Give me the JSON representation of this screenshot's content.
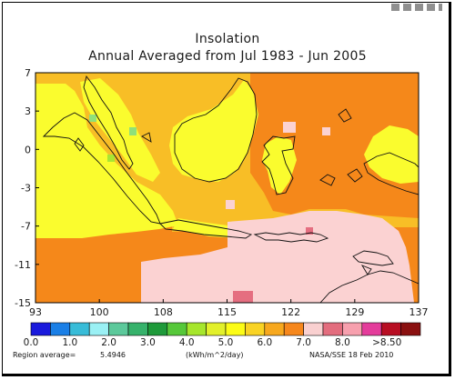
{
  "map": {
    "title": "Insolation",
    "subtitle": "Annual Averaged from Jul 1983 - Jun 2005",
    "x_ticks": [
      "93",
      "100",
      "108",
      "115",
      "122",
      "129",
      "137"
    ],
    "y_ticks": [
      "7",
      "3",
      "0",
      "-3",
      "-7",
      "-11",
      "-15"
    ],
    "region_average_label": "Region average=",
    "region_average_value": "5.4946",
    "source": "NASA/SSE  18 Feb 2010"
  },
  "legend": {
    "colors": [
      "#1a1adc",
      "#1a7fe6",
      "#38bcd8",
      "#9af0f4",
      "#5cc99b",
      "#36b26b",
      "#1e9a3a",
      "#56c83a",
      "#a6e62c",
      "#e2f02a",
      "#fcfc16",
      "#f9d324",
      "#f7a81e",
      "#f6871c",
      "#f9d0d0",
      "#e36d7e",
      "#f7a0ae",
      "#e43c9b",
      "#b80e23",
      "#8a1010"
    ],
    "labels": [
      "0.0",
      "1.0",
      "2.0",
      "3.0",
      "4.0",
      "5.0",
      "6.0",
      "7.0",
      "8.0",
      ">8.50"
    ],
    "unit": "(kWh/m^2/day)"
  },
  "fills": {
    "yellow": "#fafc2e",
    "gold": "#f8be26",
    "orange": "#f5881a",
    "pink": "#fbd2d2",
    "rose": "#e56e80",
    "lime": "#a8e633",
    "green": "#8fe07a"
  }
}
